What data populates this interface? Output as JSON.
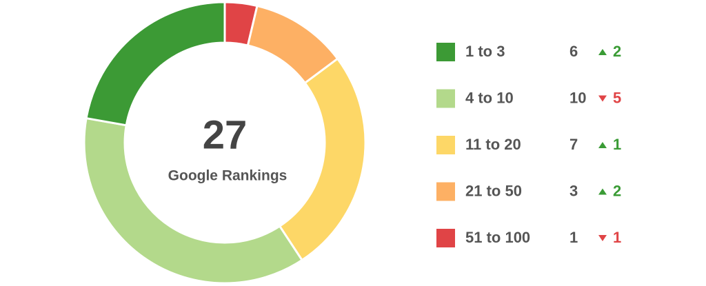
{
  "chart_data": {
    "type": "donut",
    "center_value": 27,
    "center_label": "Google Rankings",
    "categories": [
      "1 to 3",
      "4 to 10",
      "11 to 20",
      "21 to 50",
      "51 to 100"
    ],
    "values": [
      6,
      10,
      7,
      3,
      1
    ],
    "colors": [
      "#3c9a35",
      "#b3d98b",
      "#fdd767",
      "#fdb064",
      "#e04446"
    ],
    "changes": [
      2,
      -5,
      1,
      2,
      -1
    ],
    "change_labels": [
      "2",
      "5",
      "1",
      "2",
      "1"
    ],
    "up_color": "#3a9b35",
    "down_color": "#e04446"
  }
}
